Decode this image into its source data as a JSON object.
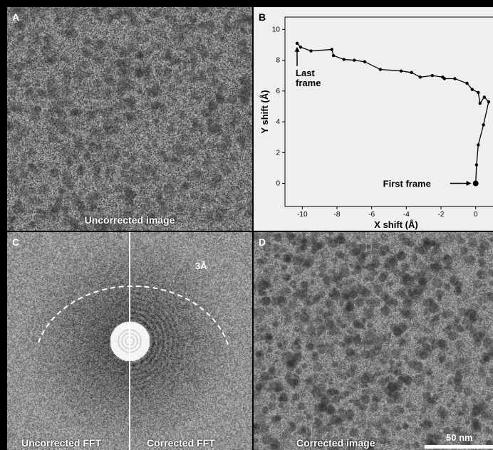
{
  "panels": {
    "a": {
      "letter": "A",
      "caption": "Uncorrected image"
    },
    "b": {
      "letter": "B"
    },
    "c": {
      "letter": "C",
      "left_caption": "Uncorrected FFT",
      "right_caption": "Corrected FFT",
      "ring_label": "3Å"
    },
    "d": {
      "letter": "D",
      "caption": "Corrected image",
      "scalebar_label": "50 nm"
    }
  },
  "chart_data": {
    "type": "line",
    "xlabel": "X shift (Å)",
    "ylabel": "Y shift (Å)",
    "xlim": [
      -11,
      1
    ],
    "ylim": [
      -1.5,
      10.8
    ],
    "xticks": [
      -10,
      -8,
      -6,
      -4,
      -2,
      0
    ],
    "yticks": [
      0,
      2,
      4,
      6,
      8,
      10
    ],
    "grid": false,
    "series": [
      {
        "x": [
          0.0,
          0.05,
          0.15,
          0.45,
          0.75,
          0.5,
          0.25,
          0.15,
          -0.2,
          -0.5,
          -1.2,
          -1.8,
          -1.9,
          -2.5,
          -3.2,
          -3.7,
          -4.3,
          -5.5,
          -6.4,
          -7.0,
          -7.6,
          -8.2,
          -8.3,
          -9.5,
          -10.1,
          -10.3
        ],
        "y": [
          0.0,
          1.2,
          2.5,
          3.8,
          5.3,
          5.6,
          5.2,
          5.9,
          6.1,
          6.5,
          6.8,
          6.8,
          6.9,
          7.0,
          6.9,
          7.2,
          7.3,
          7.4,
          7.9,
          8.0,
          8.05,
          8.3,
          8.7,
          8.6,
          8.85,
          9.1
        ]
      }
    ],
    "annotations": [
      {
        "text_lines": [
          "Last",
          "frame"
        ],
        "point": [
          -10.3,
          9.1
        ],
        "arrow": "up"
      },
      {
        "text": "First frame",
        "point": [
          0.0,
          0.0
        ],
        "arrow": "right"
      }
    ]
  }
}
